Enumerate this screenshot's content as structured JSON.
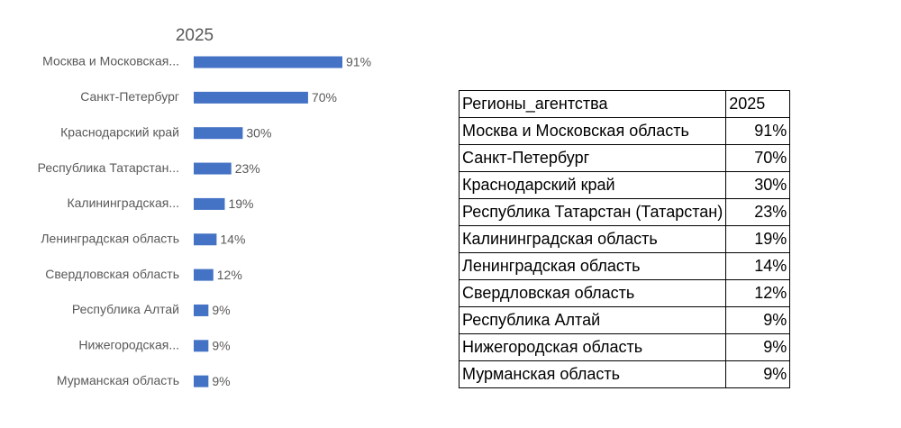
{
  "chart_data": {
    "type": "hbar",
    "title": "2025",
    "categories": [
      "Москва и Московская...",
      "Санкт-Петербург",
      "Краснодарский край",
      "Республика Татарстан...",
      "Калининградская...",
      "Ленинградская область",
      "Свердловская область",
      "Республика Алтай",
      "Нижегородская...",
      "Мурманская область"
    ],
    "values": [
      91,
      70,
      30,
      23,
      19,
      14,
      12,
      9,
      9,
      9
    ],
    "value_labels": [
      "91%",
      "70%",
      "30%",
      "23%",
      "19%",
      "14%",
      "12%",
      "9%",
      "9%",
      "9%"
    ],
    "color": "#4472c4"
  },
  "table": {
    "header": [
      "Регионы_агентства",
      "2025"
    ],
    "rows": [
      [
        "Москва и Московская область",
        "91%"
      ],
      [
        "Санкт-Петербург",
        "70%"
      ],
      [
        "Краснодарский край",
        "30%"
      ],
      [
        "Республика Татарстан (Татарстан)",
        "23%"
      ],
      [
        "Калининградская область",
        "19%"
      ],
      [
        "Ленинградская область",
        "14%"
      ],
      [
        "Свердловская область",
        "12%"
      ],
      [
        "Республика Алтай",
        "9%"
      ],
      [
        "Нижегородская область",
        "9%"
      ],
      [
        "Мурманская область",
        "9%"
      ]
    ]
  }
}
